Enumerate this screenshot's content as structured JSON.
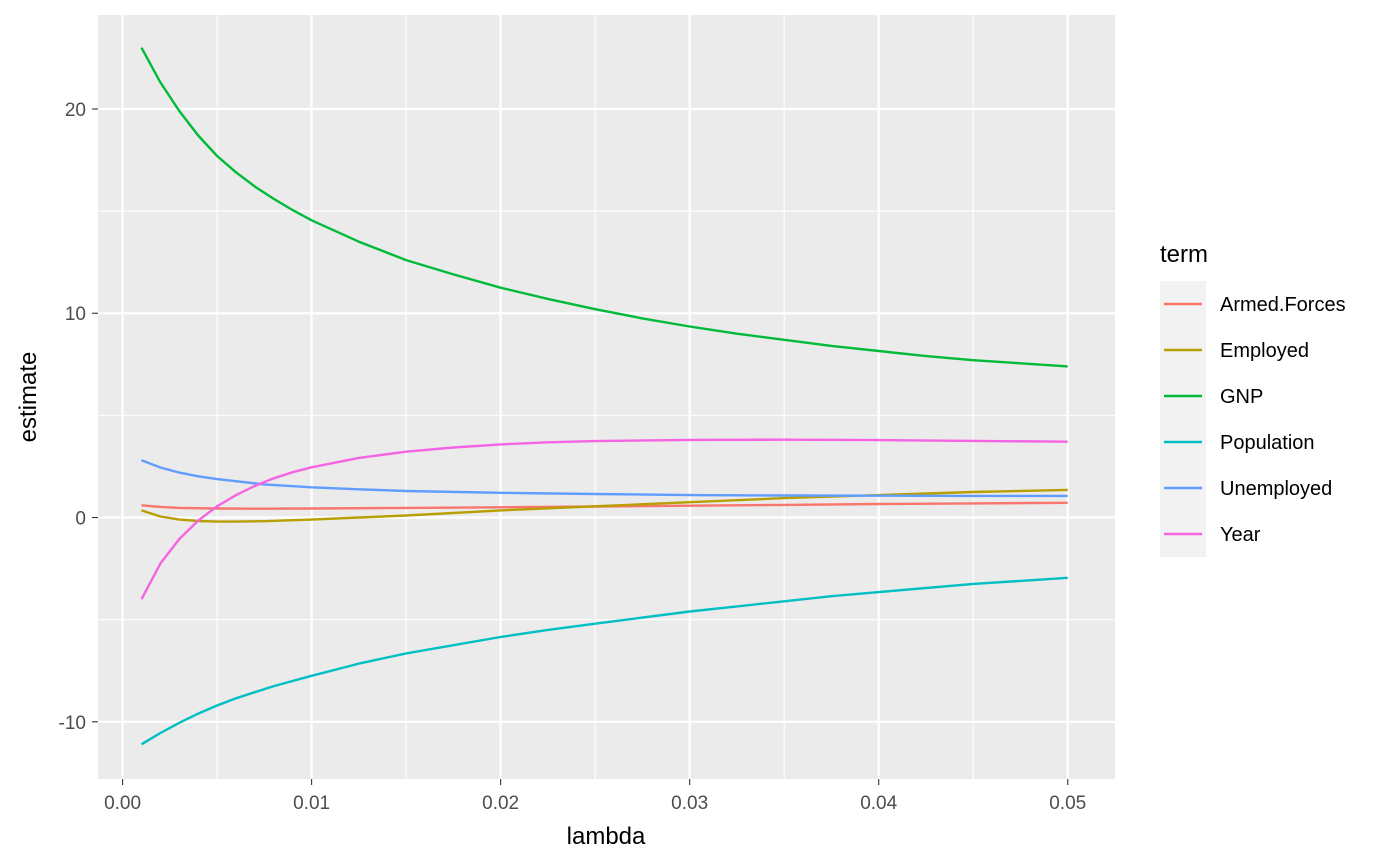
{
  "chart_data": {
    "type": "line",
    "title": "",
    "xlabel": "lambda",
    "ylabel": "estimate",
    "xlim": [
      -0.0013,
      0.0525
    ],
    "ylim": [
      -12.8,
      24.6
    ],
    "x_ticks": [
      0.0,
      0.01,
      0.02,
      0.03,
      0.04,
      0.05
    ],
    "x_tick_labels": [
      "0.00",
      "0.01",
      "0.02",
      "0.03",
      "0.04",
      "0.05"
    ],
    "y_ticks": [
      -10,
      0,
      10,
      20
    ],
    "y_tick_labels": [
      "-10",
      "0",
      "10",
      "20"
    ],
    "grid": true,
    "background": "#EBEBEB",
    "legend": {
      "title": "term",
      "position": "right"
    },
    "series": [
      {
        "name": "Armed.Forces",
        "color": "#F8766D",
        "x": [
          0.001,
          0.002,
          0.003,
          0.005,
          0.0075,
          0.01,
          0.015,
          0.02,
          0.025,
          0.03,
          0.035,
          0.04,
          0.045,
          0.05
        ],
        "y": [
          0.6,
          0.52,
          0.47,
          0.44,
          0.43,
          0.44,
          0.47,
          0.5,
          0.54,
          0.58,
          0.62,
          0.66,
          0.69,
          0.72
        ]
      },
      {
        "name": "Employed",
        "color": "#B79F00",
        "x": [
          0.001,
          0.002,
          0.003,
          0.004,
          0.005,
          0.006,
          0.0075,
          0.01,
          0.0125,
          0.015,
          0.02,
          0.025,
          0.03,
          0.035,
          0.04,
          0.045,
          0.05
        ],
        "y": [
          0.35,
          0.05,
          -0.1,
          -0.17,
          -0.2,
          -0.2,
          -0.18,
          -0.1,
          0.0,
          0.1,
          0.35,
          0.55,
          0.75,
          0.95,
          1.1,
          1.25,
          1.35
        ]
      },
      {
        "name": "GNP",
        "color": "#00BA38",
        "x": [
          0.001,
          0.002,
          0.003,
          0.004,
          0.005,
          0.006,
          0.007,
          0.008,
          0.009,
          0.01,
          0.0125,
          0.015,
          0.0175,
          0.02,
          0.0225,
          0.025,
          0.0275,
          0.03,
          0.0325,
          0.035,
          0.0375,
          0.04,
          0.0425,
          0.045,
          0.0475,
          0.05
        ],
        "y": [
          23.0,
          21.3,
          19.9,
          18.7,
          17.7,
          16.9,
          16.2,
          15.6,
          15.05,
          14.55,
          13.5,
          12.6,
          11.9,
          11.25,
          10.7,
          10.2,
          9.75,
          9.35,
          9.0,
          8.7,
          8.4,
          8.15,
          7.9,
          7.7,
          7.55,
          7.4
        ]
      },
      {
        "name": "Population",
        "color": "#00BFC4",
        "x": [
          0.001,
          0.002,
          0.003,
          0.004,
          0.005,
          0.006,
          0.007,
          0.008,
          0.01,
          0.0125,
          0.015,
          0.0175,
          0.02,
          0.0225,
          0.025,
          0.0275,
          0.03,
          0.0325,
          0.035,
          0.0375,
          0.04,
          0.0425,
          0.045,
          0.0475,
          0.05
        ],
        "y": [
          -11.1,
          -10.55,
          -10.05,
          -9.6,
          -9.2,
          -8.85,
          -8.55,
          -8.25,
          -7.75,
          -7.15,
          -6.65,
          -6.25,
          -5.85,
          -5.5,
          -5.2,
          -4.9,
          -4.6,
          -4.35,
          -4.1,
          -3.85,
          -3.65,
          -3.45,
          -3.25,
          -3.1,
          -2.95
        ]
      },
      {
        "name": "Unemployed",
        "color": "#619CFF",
        "x": [
          0.001,
          0.002,
          0.003,
          0.004,
          0.005,
          0.0075,
          0.01,
          0.0125,
          0.015,
          0.02,
          0.025,
          0.03,
          0.035,
          0.04,
          0.045,
          0.05
        ],
        "y": [
          2.8,
          2.45,
          2.2,
          2.02,
          1.88,
          1.62,
          1.48,
          1.38,
          1.3,
          1.21,
          1.15,
          1.1,
          1.08,
          1.07,
          1.06,
          1.06
        ]
      },
      {
        "name": "Year",
        "color": "#F564E3",
        "x": [
          0.001,
          0.002,
          0.003,
          0.004,
          0.005,
          0.006,
          0.007,
          0.008,
          0.009,
          0.01,
          0.0125,
          0.015,
          0.0175,
          0.02,
          0.0225,
          0.025,
          0.03,
          0.035,
          0.04,
          0.045,
          0.05
        ],
        "y": [
          -4.0,
          -2.25,
          -1.05,
          -0.15,
          0.55,
          1.1,
          1.55,
          1.92,
          2.22,
          2.46,
          2.92,
          3.22,
          3.43,
          3.58,
          3.68,
          3.74,
          3.8,
          3.81,
          3.79,
          3.75,
          3.71
        ]
      }
    ]
  }
}
